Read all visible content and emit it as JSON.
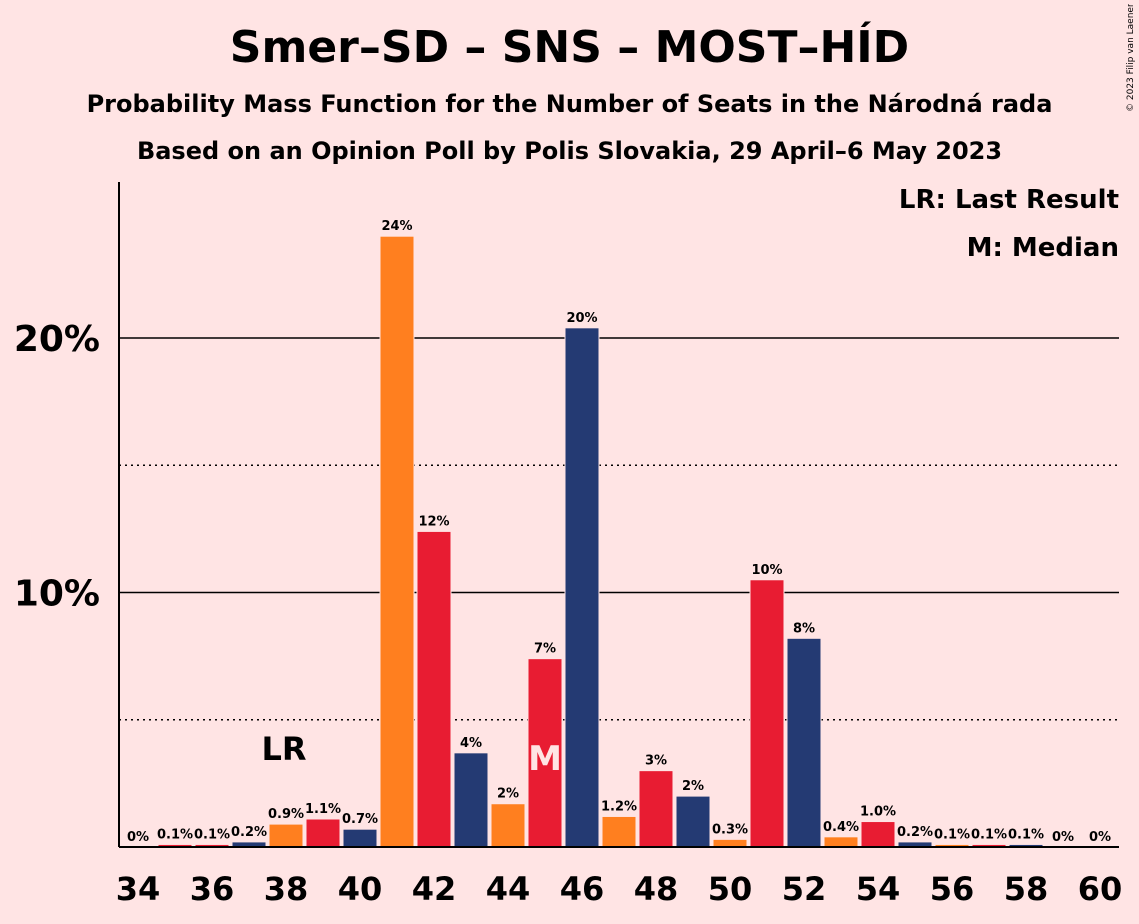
{
  "title": "Smer–SD – SNS – MOST–HÍD",
  "subtitle1": "Probability Mass Function for the Number of Seats in the Národná rada",
  "subtitle2": "Based on an Opinion Poll by Polis Slovakia, 29 April–6 May 2023",
  "legend_lr": "LR: Last Result",
  "legend_m": "M: Median",
  "copyright": "© 2023 Filip van Laenen",
  "colors": {
    "orange": "#FF7F1F",
    "red": "#E81C32",
    "navy": "#243A73",
    "background": "#FFE4E4"
  },
  "chart_data": {
    "type": "bar",
    "x": [
      34,
      35,
      36,
      37,
      38,
      39,
      40,
      41,
      42,
      43,
      44,
      45,
      46,
      47,
      48,
      49,
      50,
      51,
      52,
      53,
      54,
      55,
      56,
      57,
      58,
      59,
      60
    ],
    "values": [
      0,
      0.1,
      0.1,
      0.2,
      0.9,
      1.1,
      0.7,
      24.0,
      12.4,
      3.7,
      1.7,
      7.4,
      20.4,
      1.2,
      3.0,
      2.0,
      0.3,
      10.5,
      8.2,
      0.4,
      1.0,
      0.2,
      0.1,
      0.1,
      0.1,
      0,
      0
    ],
    "labels": [
      "0%",
      "0.1%",
      "0.1%",
      "0.2%",
      "0.9%",
      "1.1%",
      "0.7%",
      "24%",
      "12%",
      "4%",
      "2%",
      "7%",
      "20%",
      "1.2%",
      "3%",
      "2%",
      "0.3%",
      "10%",
      "8%",
      "0.4%",
      "1.0%",
      "0.2%",
      "0.1%",
      "0.1%",
      "0.1%",
      "0%",
      "0%"
    ],
    "colors": [
      "orange",
      "red",
      "red",
      "navy",
      "orange",
      "red",
      "navy",
      "orange",
      "red",
      "navy",
      "orange",
      "red",
      "navy",
      "orange",
      "red",
      "navy",
      "orange",
      "red",
      "navy",
      "orange",
      "red",
      "navy",
      "orange",
      "red",
      "navy",
      "orange",
      "red"
    ],
    "x_tick_labels": [
      "34",
      "36",
      "38",
      "40",
      "42",
      "44",
      "46",
      "48",
      "50",
      "52",
      "54",
      "56",
      "58",
      "60"
    ],
    "y_ticks": [
      {
        "value": 10,
        "label": "10%"
      },
      {
        "value": 20,
        "label": "20%"
      }
    ],
    "y_minor_gridlines": [
      5,
      15
    ],
    "ylim": [
      0,
      26
    ],
    "last_result": {
      "x": 38,
      "label": "LR"
    },
    "median": {
      "x": 45,
      "label": "M"
    }
  }
}
